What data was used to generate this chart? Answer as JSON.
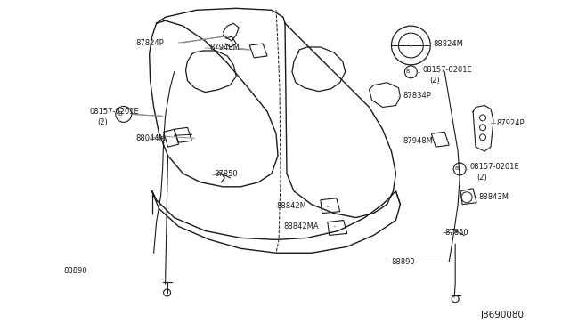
{
  "bg_color": "#ffffff",
  "line_color": "#1a1a1a",
  "text_color": "#1a1a1a",
  "figsize": [
    6.4,
    3.72
  ],
  "dpi": 100,
  "xlim": [
    0,
    640
  ],
  "ylim": [
    0,
    372
  ],
  "diagram_id": "J8690080"
}
